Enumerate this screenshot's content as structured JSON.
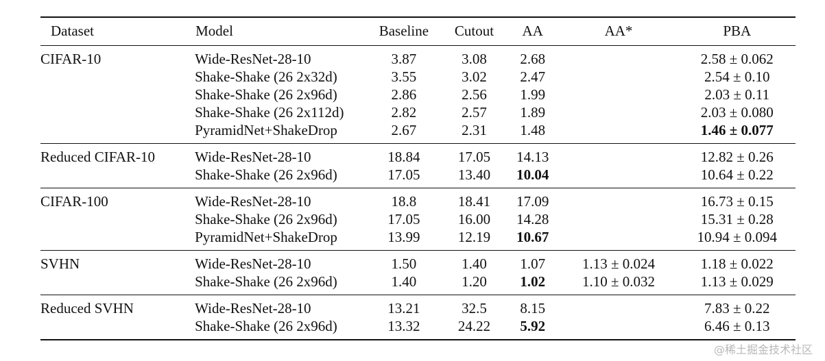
{
  "headers": {
    "dataset": "Dataset",
    "model": "Model",
    "baseline": "Baseline",
    "cutout": "Cutout",
    "aa": "AA",
    "aa_star": "AA*",
    "pba": "PBA"
  },
  "groups": [
    {
      "dataset": "CIFAR-10",
      "rows": [
        {
          "model": "Wide-ResNet-28-10",
          "baseline": "3.87",
          "cutout": "3.08",
          "aa": "2.68",
          "aa_star": "",
          "pba": "2.58 ± 0.062"
        },
        {
          "model": "Shake-Shake (26 2x32d)",
          "baseline": "3.55",
          "cutout": "3.02",
          "aa": "2.47",
          "aa_star": "",
          "pba": "2.54 ± 0.10"
        },
        {
          "model": "Shake-Shake (26 2x96d)",
          "baseline": "2.86",
          "cutout": "2.56",
          "aa": "1.99",
          "aa_star": "",
          "pba": "2.03 ± 0.11"
        },
        {
          "model": "Shake-Shake (26 2x112d)",
          "baseline": "2.82",
          "cutout": "2.57",
          "aa": "1.89",
          "aa_star": "",
          "pba": "2.03 ± 0.080"
        },
        {
          "model": "PyramidNet+ShakeDrop",
          "baseline": "2.67",
          "cutout": "2.31",
          "aa": "1.48",
          "aa_star": "",
          "pba": "1.46 ± 0.077",
          "bold": "pba"
        }
      ]
    },
    {
      "dataset": "Reduced CIFAR-10",
      "rows": [
        {
          "model": "Wide-ResNet-28-10",
          "baseline": "18.84",
          "cutout": "17.05",
          "aa": "14.13",
          "aa_star": "",
          "pba": "12.82 ± 0.26"
        },
        {
          "model": "Shake-Shake (26 2x96d)",
          "baseline": "17.05",
          "cutout": "13.40",
          "aa": "10.04",
          "aa_star": "",
          "pba": "10.64 ± 0.22",
          "bold": "aa"
        }
      ]
    },
    {
      "dataset": "CIFAR-100",
      "rows": [
        {
          "model": "Wide-ResNet-28-10",
          "baseline": "18.8",
          "cutout": "18.41",
          "aa": "17.09",
          "aa_star": "",
          "pba": "16.73 ± 0.15"
        },
        {
          "model": "Shake-Shake (26 2x96d)",
          "baseline": "17.05",
          "cutout": "16.00",
          "aa": "14.28",
          "aa_star": "",
          "pba": "15.31 ± 0.28"
        },
        {
          "model": "PyramidNet+ShakeDrop",
          "baseline": "13.99",
          "cutout": "12.19",
          "aa": "10.67",
          "aa_star": "",
          "pba": "10.94 ± 0.094",
          "bold": "aa"
        }
      ]
    },
    {
      "dataset": "SVHN",
      "rows": [
        {
          "model": "Wide-ResNet-28-10",
          "baseline": "1.50",
          "cutout": "1.40",
          "aa": "1.07",
          "aa_star": "1.13 ± 0.024",
          "pba": "1.18 ± 0.022"
        },
        {
          "model": "Shake-Shake (26 2x96d)",
          "baseline": "1.40",
          "cutout": "1.20",
          "aa": "1.02",
          "aa_star": "1.10 ± 0.032",
          "pba": "1.13 ± 0.029",
          "bold": "aa"
        }
      ]
    },
    {
      "dataset": "Reduced SVHN",
      "rows": [
        {
          "model": "Wide-ResNet-28-10",
          "baseline": "13.21",
          "cutout": "32.5",
          "aa": "8.15",
          "aa_star": "",
          "pba": "7.83 ± 0.22"
        },
        {
          "model": "Shake-Shake (26 2x96d)",
          "baseline": "13.32",
          "cutout": "24.22",
          "aa": "5.92",
          "aa_star": "",
          "pba": "6.46 ± 0.13",
          "bold": "aa"
        }
      ]
    }
  ],
  "watermark": "@稀土掘金技术社区"
}
